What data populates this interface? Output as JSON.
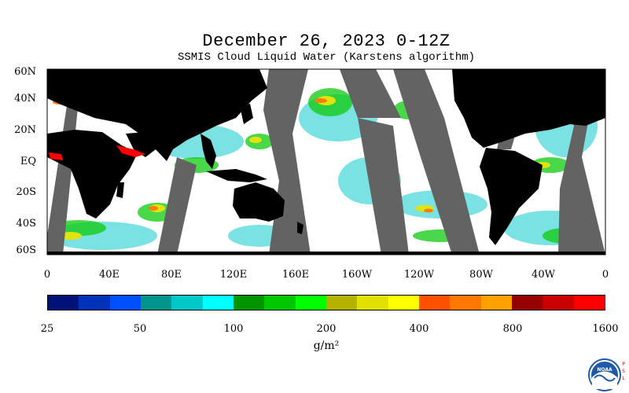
{
  "header": {
    "title": "December 26, 2023 0-12Z",
    "subtitle": "SSMIS Cloud Liquid Water (Karstens algorithm)"
  },
  "map": {
    "land_color": "#000000",
    "no_data_color": "#636363",
    "background_color": "#ffffff",
    "lat_labels": [
      "60N",
      "40N",
      "20N",
      "EQ",
      "20S",
      "40S",
      "60S"
    ],
    "lon_labels": [
      "0",
      "40E",
      "80E",
      "120E",
      "160E",
      "160W",
      "120W",
      "80W",
      "40W",
      "0"
    ]
  },
  "colorbar": {
    "colors": [
      "#001277",
      "#0032b8",
      "#0050ff",
      "#00968e",
      "#00c8c8",
      "#00ffff",
      "#009600",
      "#00c800",
      "#00ff00",
      "#b4b400",
      "#e1e100",
      "#ffff00",
      "#ff5000",
      "#ff7800",
      "#ffa000",
      "#960000",
      "#c80000",
      "#ff0000"
    ],
    "ticks": [
      "25",
      "50",
      "100",
      "200",
      "400",
      "800",
      "1600"
    ],
    "units": "g/m²"
  },
  "logo": {
    "text": "NOAA",
    "side_text": "PSL",
    "icon": "noaa-logo-icon"
  }
}
